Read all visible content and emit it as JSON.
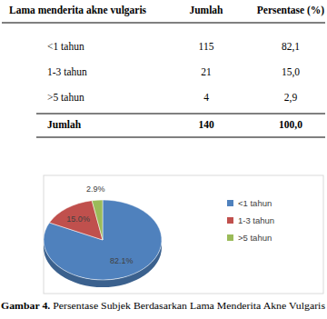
{
  "table": {
    "header": [
      "Lama menderita akne vulgaris",
      "Jumlah",
      "Persentase (%)"
    ],
    "rows": [
      [
        "<1 tahun",
        "115",
        "82,1"
      ],
      [
        "1-3 tahun",
        "21",
        "15,0"
      ],
      [
        ">5 tahun",
        "4",
        "2,9"
      ]
    ],
    "footer": [
      "Jumlah",
      "140",
      "100,0"
    ]
  },
  "chart_data": {
    "type": "pie",
    "categories": [
      "<1 tahun",
      "1-3 tahun",
      ">5 tahun"
    ],
    "values": [
      82.1,
      15.0,
      2.9
    ],
    "value_labels": [
      "82.1%",
      "15.0%",
      "2.9%"
    ],
    "colors": [
      "#4f81bd",
      "#c0504d",
      "#9bbb59"
    ],
    "legend": "right",
    "data_labels": true
  },
  "caption": {
    "label": "Gambar 4.",
    "text": "Persentase Subjek Berdasarkan Lama Menderita Akne Vulgaris"
  }
}
